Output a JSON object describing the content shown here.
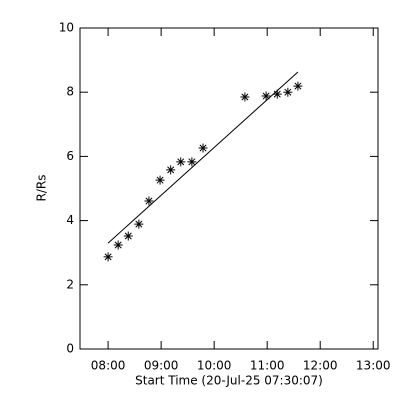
{
  "chart_data": {
    "type": "scatter",
    "x_label": "Start Time (20-Jul-25 07:30:07)",
    "y_label": "R/Rs",
    "xlim": [
      7.47,
      13.09
    ],
    "ylim": [
      0,
      10
    ],
    "xticks": [
      {
        "value": 8,
        "label": "08:00"
      },
      {
        "value": 9,
        "label": "09:00"
      },
      {
        "value": 10,
        "label": "10:00"
      },
      {
        "value": 11,
        "label": "11:00"
      },
      {
        "value": 12,
        "label": "12:00"
      },
      {
        "value": 13,
        "label": "13:00"
      }
    ],
    "yticks": [
      0,
      2,
      4,
      6,
      8,
      10
    ],
    "color": "#000000",
    "series": [
      {
        "marker": "asterisk",
        "x": [
          8.0,
          8.19,
          8.38,
          8.58,
          8.77,
          8.98,
          9.18,
          9.37,
          9.58,
          9.79,
          10.58,
          10.98,
          11.19,
          11.39,
          11.58
        ],
        "values": [
          2.87,
          3.24,
          3.52,
          3.89,
          4.61,
          5.26,
          5.58,
          5.83,
          5.83,
          6.26,
          7.85,
          7.88,
          7.94,
          8.0,
          8.19
        ]
      }
    ],
    "fit": {
      "x": [
        8.0,
        11.58
      ],
      "values": [
        3.3,
        8.63
      ]
    }
  }
}
